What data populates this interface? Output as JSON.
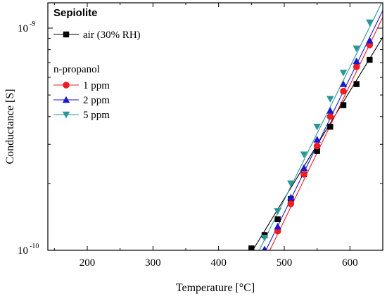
{
  "chart_data": {
    "type": "line",
    "title": "",
    "xlabel": "Temperature [°C]",
    "ylabel": "Conductance [S]",
    "xlim": [
      140,
      650
    ],
    "ylim": [
      1e-10,
      1.3e-09
    ],
    "yscale": "log",
    "xticks": [
      200,
      300,
      400,
      500,
      600
    ],
    "xtick_labels": [
      "200",
      "300",
      "400",
      "500",
      "600"
    ],
    "yticks": [
      1e-10,
      1e-09
    ],
    "ytick_labels": [
      {
        "base": "10",
        "exp": "-10"
      },
      {
        "base": "10",
        "exp": "-9"
      }
    ],
    "grid": false,
    "legend": {
      "position": "top-left",
      "heading": "Sepiolite",
      "group_label": "n-propanol"
    },
    "series": [
      {
        "name": "air (30% RH)",
        "color": "#000000",
        "marker": "square",
        "x": [
          450,
          470,
          490,
          510,
          530,
          550,
          570,
          590,
          610,
          630
        ],
        "y": [
          1.02e-10,
          1.17e-10,
          1.38e-10,
          1.7e-10,
          2.2e-10,
          2.8e-10,
          3.6e-10,
          4.5e-10,
          5.6e-10,
          7.2e-10
        ],
        "fit": {
          "x0": 452,
          "y0": 1e-10,
          "x1": 650,
          "y1": 9.1e-10
        }
      },
      {
        "name": "1 ppm",
        "color": "#ee1c24",
        "marker": "circle",
        "x": [
          490,
          510,
          530,
          550,
          570,
          590,
          610,
          630
        ],
        "y": [
          1.22e-10,
          1.62e-10,
          2.2e-10,
          2.95e-10,
          4e-10,
          5.2e-10,
          6.7e-10,
          8.4e-10
        ],
        "fit": {
          "x0": 478,
          "y0": 1e-10,
          "x1": 650,
          "y1": 1.12e-09
        }
      },
      {
        "name": "2 ppm",
        "color": "#1a1acc",
        "marker": "triangle-up",
        "x": [
          470,
          490,
          510,
          530,
          550,
          570,
          590,
          610,
          630
        ],
        "y": [
          1.01e-10,
          1.28e-10,
          1.73e-10,
          2.35e-10,
          3.15e-10,
          4.25e-10,
          5.6e-10,
          7.1e-10,
          8.8e-10
        ],
        "fit": {
          "x0": 472,
          "y0": 1e-10,
          "x1": 650,
          "y1": 1.2e-09
        }
      },
      {
        "name": "5 ppm",
        "color": "#2b9696",
        "marker": "triangle-down",
        "x": [
          470,
          490,
          510,
          530,
          550,
          570,
          590,
          610,
          630
        ],
        "y": [
          1.14e-10,
          1.5e-10,
          2e-10,
          2.7e-10,
          3.6e-10,
          4.8e-10,
          6.3e-10,
          8.1e-10,
          1.06e-09
        ],
        "fit": {
          "x0": 462,
          "y0": 1e-10,
          "x1": 650,
          "y1": 1.33e-09
        }
      }
    ]
  }
}
